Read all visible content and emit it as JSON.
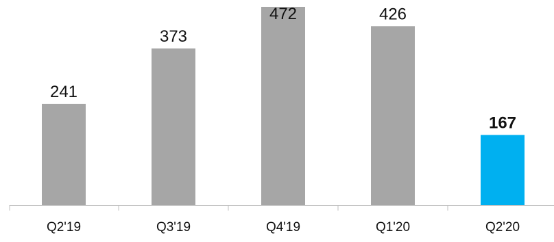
{
  "chart_data": {
    "type": "bar",
    "categories": [
      "Q2'19",
      "Q3'19",
      "Q4'19",
      "Q1'20",
      "Q2'20"
    ],
    "values": [
      241,
      373,
      472,
      426,
      167
    ],
    "data_labels": [
      "241",
      "373",
      "472",
      "426",
      "167"
    ],
    "highlight_index": 4,
    "colors": {
      "bar": "#a6a6a6",
      "highlight": "#00b0f0",
      "axis": "#bfbfbf",
      "text": "#111111"
    },
    "ylim": [
      0,
      472
    ],
    "grid": false,
    "legend": "none"
  }
}
